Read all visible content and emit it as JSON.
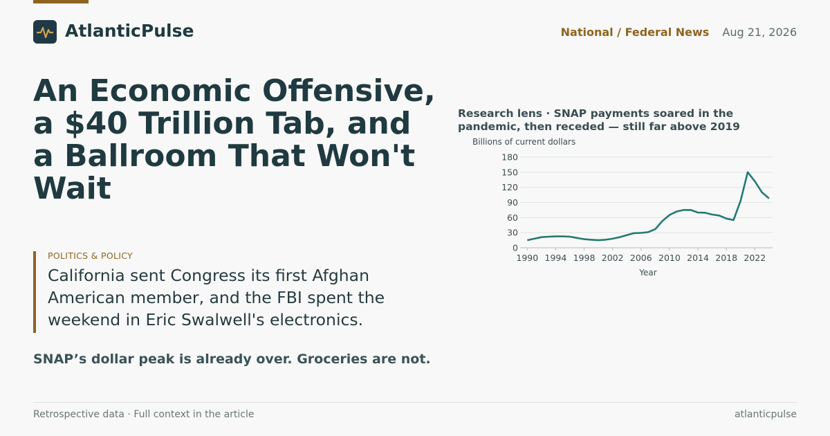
{
  "header": {
    "brand": "AtlanticPulse",
    "section": "National / Federal News",
    "date": "Aug 21, 2026"
  },
  "headline": "An Economic Offensive, a $40 Trillion Tab, and a Ballroom That Won't Wait",
  "kicker": "POLITICS & POLICY",
  "dek": "California sent Congress its first Afghan American member, and the FBI spent the weekend in Eric Swalwell's electronics.",
  "summary": "SNAP’s dollar peak is already over. Groceries are not.",
  "footer": {
    "left": "Retrospective data · Full context in the article",
    "right": "atlanticpulse"
  },
  "chart_data": {
    "type": "line",
    "title": "Research lens · SNAP payments soared in the pandemic, then receded — still far above 2019",
    "y_label": "Billions of current dollars",
    "x_label": "Year",
    "x": [
      1990,
      1991,
      1992,
      1993,
      1994,
      1995,
      1996,
      1997,
      1998,
      1999,
      2000,
      2001,
      2002,
      2003,
      2004,
      2005,
      2006,
      2007,
      2008,
      2009,
      2010,
      2011,
      2012,
      2013,
      2014,
      2015,
      2016,
      2017,
      2018,
      2019,
      2020,
      2021,
      2022,
      2023,
      2024
    ],
    "series": [
      {
        "name": "SNAP payments",
        "color": "#237a72",
        "values": [
          15,
          18,
          21,
          22,
          22.5,
          22.5,
          22,
          19.5,
          17,
          16,
          15,
          16,
          18,
          21,
          25,
          29,
          29.5,
          31,
          37,
          53,
          65,
          72,
          75,
          75,
          70,
          69.5,
          66,
          64,
          58,
          55,
          93,
          150,
          132,
          110,
          98
        ]
      }
    ],
    "xlim": [
      1989,
      2024.5
    ],
    "ylim": [
      0,
      180
    ],
    "xticks": [
      1990,
      1994,
      1998,
      2002,
      2006,
      2010,
      2014,
      2018,
      2022
    ],
    "yticks": [
      0,
      30,
      60,
      90,
      120,
      150,
      180
    ],
    "grid": true
  }
}
